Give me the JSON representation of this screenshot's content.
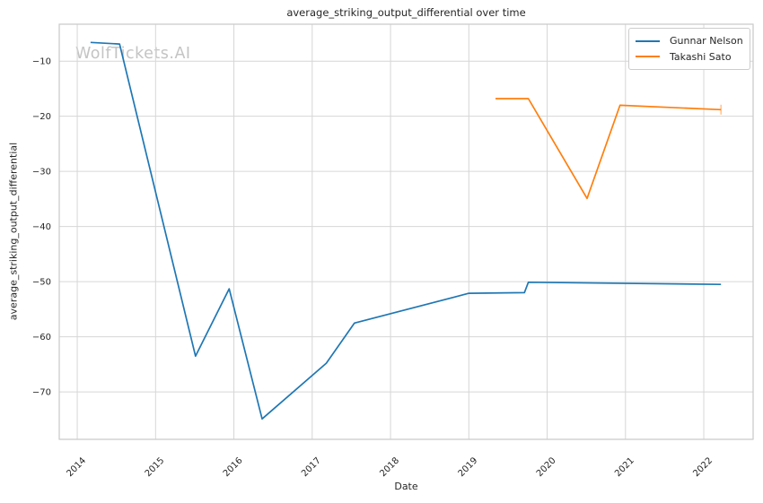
{
  "watermark": "WolfTickets.AI",
  "chart_data": {
    "type": "line",
    "title": "average_striking_output_differential over time",
    "xlabel": "Date",
    "ylabel": "average_striking_output_differential",
    "xlim": [
      2013.77,
      2022.63
    ],
    "ylim": [
      -78.6,
      -3.3
    ],
    "xticks": [
      2014,
      2015,
      2016,
      2017,
      2018,
      2019,
      2020,
      2021,
      2022
    ],
    "yticks": [
      -10,
      -20,
      -30,
      -40,
      -50,
      -60,
      -70
    ],
    "grid": true,
    "legend_position": "upper right",
    "series": [
      {
        "name": "Gunnar Nelson",
        "color": "#1f77b4",
        "points": [
          [
            2014.17,
            -6.6
          ],
          [
            2014.54,
            -6.9
          ],
          [
            2015.51,
            -63.5
          ],
          [
            2015.94,
            -51.3
          ],
          [
            2016.36,
            -74.9
          ],
          [
            2017.18,
            -64.8
          ],
          [
            2017.54,
            -57.5
          ],
          [
            2019.0,
            -52.1
          ],
          [
            2019.71,
            -52.0
          ],
          [
            2019.76,
            -50.1
          ],
          [
            2022.22,
            -50.5
          ]
        ]
      },
      {
        "name": "Takashi Sato",
        "color": "#ff7f0e",
        "end_tick": true,
        "points": [
          [
            2019.34,
            -16.8
          ],
          [
            2019.76,
            -16.8
          ],
          [
            2020.51,
            -34.9
          ],
          [
            2020.93,
            -18.0
          ],
          [
            2022.22,
            -18.8
          ]
        ]
      }
    ]
  },
  "colors": {
    "grid": "#d6d6d6",
    "spine": "#c9c9c9",
    "text": "#262626",
    "watermark": "#c4c4c4",
    "background": "#ffffff"
  }
}
